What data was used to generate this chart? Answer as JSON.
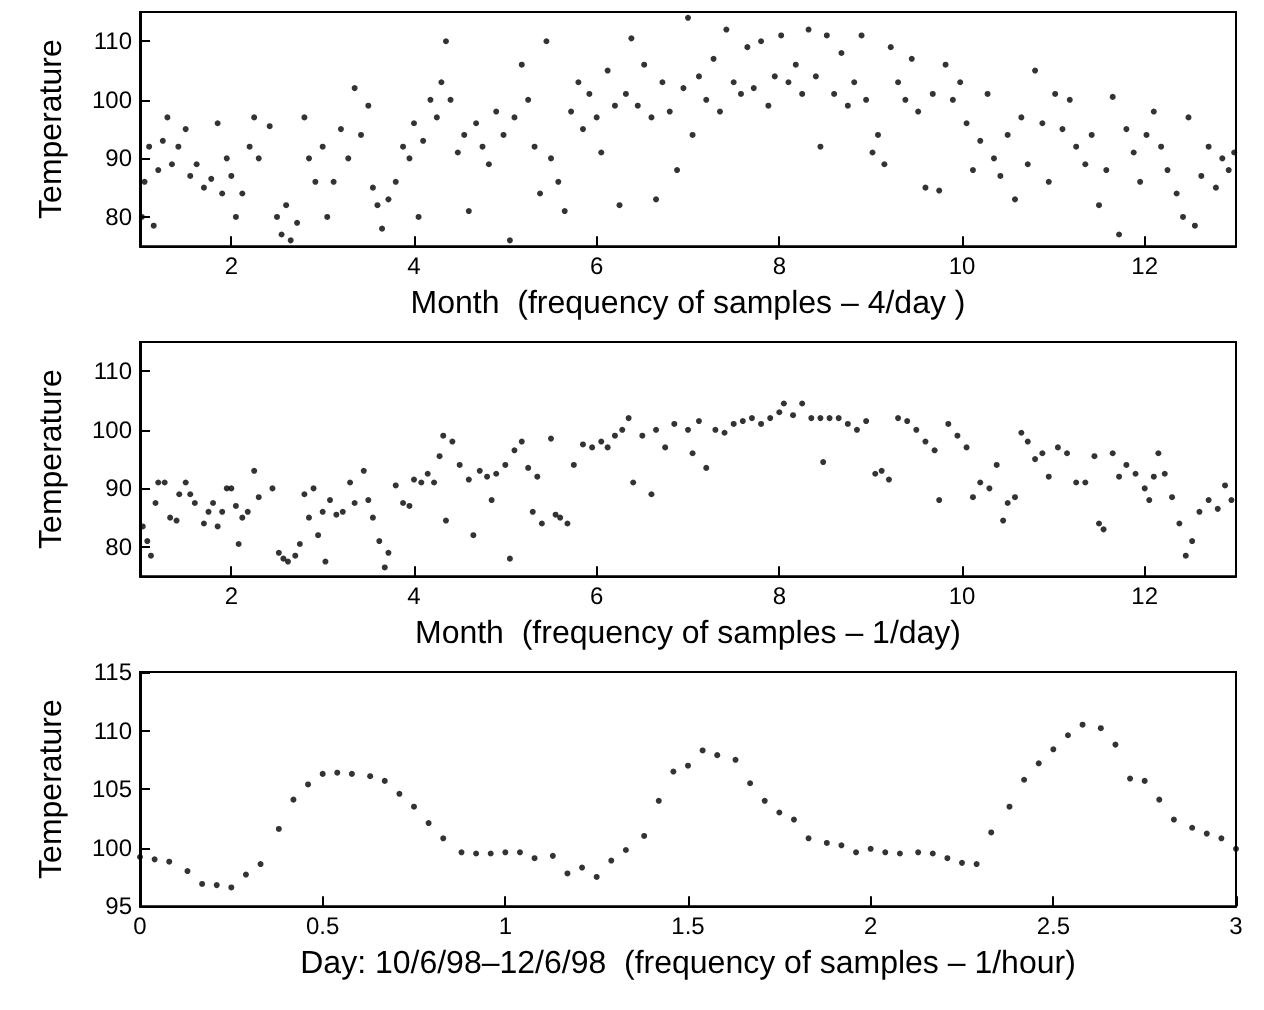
{
  "chart_data": [
    {
      "type": "scatter",
      "xlabel": "Month  (frequency of samples – 4/day )",
      "ylabel": "Temperature",
      "color": "#000000",
      "marker": "circle",
      "xlim": [
        1,
        13
      ],
      "ylim": [
        75,
        115
      ],
      "xticks": [
        2,
        4,
        6,
        8,
        10,
        12
      ],
      "yticks": [
        80,
        90,
        100,
        110
      ],
      "x": [
        1.02,
        1.05,
        1.1,
        1.15,
        1.2,
        1.25,
        1.3,
        1.35,
        1.42,
        1.5,
        1.55,
        1.62,
        1.7,
        1.78,
        1.85,
        1.9,
        1.95,
        2.0,
        2.05,
        2.12,
        2.2,
        2.25,
        2.3,
        2.42,
        2.5,
        2.55,
        2.6,
        2.65,
        2.72,
        2.8,
        2.85,
        2.92,
        3.0,
        3.05,
        3.12,
        3.2,
        3.28,
        3.35,
        3.42,
        3.5,
        3.55,
        3.6,
        3.65,
        3.72,
        3.8,
        3.88,
        3.95,
        4.0,
        4.05,
        4.1,
        4.18,
        4.25,
        4.3,
        4.35,
        4.4,
        4.48,
        4.55,
        4.6,
        4.68,
        4.75,
        4.82,
        4.9,
        4.98,
        5.05,
        5.1,
        5.18,
        5.25,
        5.32,
        5.38,
        5.45,
        5.5,
        5.58,
        5.65,
        5.72,
        5.8,
        5.85,
        5.92,
        6.0,
        6.05,
        6.12,
        6.2,
        6.25,
        6.32,
        6.38,
        6.45,
        6.52,
        6.6,
        6.65,
        6.72,
        6.8,
        6.88,
        6.95,
        7.0,
        7.05,
        7.12,
        7.2,
        7.28,
        7.35,
        7.42,
        7.5,
        7.58,
        7.65,
        7.72,
        7.8,
        7.88,
        7.95,
        8.02,
        8.1,
        8.18,
        8.25,
        8.32,
        8.4,
        8.45,
        8.52,
        8.6,
        8.68,
        8.75,
        8.82,
        8.9,
        8.95,
        9.02,
        9.08,
        9.15,
        9.22,
        9.3,
        9.38,
        9.45,
        9.52,
        9.6,
        9.68,
        9.75,
        9.82,
        9.9,
        9.98,
        10.05,
        10.12,
        10.2,
        10.28,
        10.35,
        10.42,
        10.5,
        10.58,
        10.65,
        10.72,
        10.8,
        10.88,
        10.95,
        11.02,
        11.1,
        11.18,
        11.25,
        11.35,
        11.42,
        11.5,
        11.58,
        11.65,
        11.72,
        11.8,
        11.88,
        11.95,
        12.02,
        12.1,
        12.18,
        12.25,
        12.35,
        12.42,
        12.48,
        12.55,
        12.62,
        12.7,
        12.78,
        12.85,
        12.92,
        12.98
      ],
      "values": [
        80,
        86,
        92,
        78.5,
        88,
        93,
        97,
        89,
        92,
        95,
        87,
        89,
        85,
        86.5,
        96,
        84,
        90,
        87,
        80,
        84,
        92,
        97,
        90,
        95.5,
        80,
        77,
        82,
        76,
        79,
        97,
        90,
        86,
        92,
        80,
        86,
        95,
        90,
        102,
        94,
        99,
        85,
        82,
        78,
        83,
        86,
        92,
        90,
        96,
        80,
        93,
        100,
        97,
        103,
        110,
        100,
        91,
        94,
        81,
        96,
        92,
        89,
        98,
        94,
        76,
        97,
        106,
        100,
        92,
        84,
        110,
        90,
        86,
        81,
        98,
        103,
        95,
        101,
        97,
        91,
        105,
        99,
        82,
        101,
        110.5,
        99,
        106,
        97,
        83,
        103,
        98,
        88,
        102,
        114,
        94,
        104,
        100,
        107,
        98,
        112,
        103,
        101,
        109,
        102,
        110,
        99,
        104,
        111,
        103,
        106,
        101,
        112,
        104,
        92,
        111,
        101,
        108,
        99,
        103,
        111,
        100,
        91,
        94,
        89,
        109,
        103,
        100,
        107,
        98,
        85,
        101,
        84.5,
        106,
        100,
        103,
        96,
        88,
        93,
        101,
        90,
        87,
        94,
        83,
        97,
        89,
        105,
        96,
        86,
        101,
        95,
        100,
        92,
        89,
        94,
        82,
        88,
        100.5,
        77,
        95,
        91,
        86,
        94,
        98,
        92,
        88,
        84,
        80,
        97,
        78.5,
        87,
        92,
        85,
        90,
        88,
        91
      ]
    },
    {
      "type": "scatter",
      "xlabel": "Month  (frequency of samples – 1/day)",
      "ylabel": "Temperature",
      "color": "#000000",
      "marker": "circle",
      "xlim": [
        1,
        13
      ],
      "ylim": [
        75,
        115
      ],
      "xticks": [
        2,
        4,
        6,
        8,
        10,
        12
      ],
      "yticks": [
        80,
        90,
        100,
        110
      ],
      "x": [
        1.03,
        1.08,
        1.12,
        1.17,
        1.2,
        1.27,
        1.33,
        1.4,
        1.43,
        1.5,
        1.55,
        1.6,
        1.7,
        1.75,
        1.8,
        1.85,
        1.9,
        1.95,
        2.0,
        2.05,
        2.08,
        2.12,
        2.18,
        2.25,
        2.3,
        2.45,
        2.52,
        2.57,
        2.62,
        2.7,
        2.75,
        2.8,
        2.85,
        2.9,
        2.95,
        3.0,
        3.03,
        3.08,
        3.15,
        3.22,
        3.3,
        3.35,
        3.45,
        3.5,
        3.55,
        3.62,
        3.68,
        3.72,
        3.8,
        3.88,
        3.95,
        4.0,
        4.08,
        4.15,
        4.22,
        4.28,
        4.32,
        4.35,
        4.42,
        4.5,
        4.6,
        4.65,
        4.72,
        4.8,
        4.85,
        4.9,
        5.0,
        5.05,
        5.1,
        5.18,
        5.25,
        5.3,
        5.35,
        5.4,
        5.5,
        5.55,
        5.6,
        5.68,
        5.75,
        5.85,
        5.95,
        6.05,
        6.12,
        6.2,
        6.28,
        6.35,
        6.4,
        6.5,
        6.6,
        6.65,
        6.75,
        6.85,
        7.0,
        7.05,
        7.12,
        7.2,
        7.3,
        7.4,
        7.5,
        7.6,
        7.7,
        7.8,
        7.9,
        8.0,
        8.05,
        8.15,
        8.25,
        8.35,
        8.45,
        8.48,
        8.55,
        8.65,
        8.75,
        8.85,
        8.95,
        9.05,
        9.12,
        9.2,
        9.3,
        9.4,
        9.5,
        9.6,
        9.7,
        9.75,
        9.85,
        9.95,
        10.05,
        10.12,
        10.2,
        10.3,
        10.38,
        10.45,
        10.5,
        10.58,
        10.65,
        10.72,
        10.8,
        10.88,
        10.95,
        11.05,
        11.15,
        11.25,
        11.35,
        11.45,
        11.5,
        11.55,
        11.65,
        11.72,
        11.8,
        11.9,
        12.0,
        12.05,
        12.1,
        12.15,
        12.22,
        12.3,
        12.38,
        12.45,
        12.52,
        12.6,
        12.7,
        12.8,
        12.88,
        12.95
      ],
      "values": [
        83.5,
        81,
        78.5,
        87.5,
        91,
        91,
        85,
        84.5,
        89,
        91,
        89,
        87.5,
        84,
        86,
        87.5,
        83.5,
        86,
        90,
        90,
        87,
        80.5,
        85,
        86,
        93,
        88.5,
        90,
        79,
        78,
        77.5,
        78.5,
        80.5,
        89,
        85,
        90,
        82,
        86,
        77.5,
        88,
        85.5,
        86,
        91,
        87.5,
        93,
        88,
        85,
        81,
        76.5,
        79,
        90.5,
        87.5,
        87,
        91.5,
        91,
        92.5,
        91,
        95.5,
        99,
        84.5,
        98,
        94,
        91.5,
        82,
        93,
        92,
        88,
        92.5,
        94,
        78,
        96.5,
        98,
        93.5,
        86,
        92,
        84,
        98.5,
        85.5,
        85,
        84,
        94,
        97.5,
        97,
        98,
        97,
        99,
        100,
        102,
        91,
        99,
        89,
        100,
        97,
        101,
        100,
        96,
        101.5,
        93.5,
        100,
        99.5,
        101,
        101.5,
        102,
        101,
        102,
        103,
        104.5,
        102.5,
        104.5,
        102,
        102,
        94.5,
        102,
        102,
        101,
        100,
        101.5,
        92.5,
        93,
        91.5,
        102,
        101.5,
        100,
        98,
        96.5,
        88,
        101,
        99,
        97,
        88.5,
        91,
        90,
        94,
        84.5,
        87.5,
        88.5,
        99.5,
        98,
        95,
        96,
        92,
        97,
        96,
        91,
        91,
        95.5,
        84,
        83,
        96,
        92,
        94,
        92.5,
        90,
        88,
        92,
        96,
        92.5,
        88.5,
        84,
        78.5,
        81,
        86,
        88,
        86.5,
        90.5,
        88
      ]
    },
    {
      "type": "scatter",
      "xlabel": "Day: 10/6/98–12/6/98  (frequency of samples – 1/hour)",
      "ylabel": "Temperature",
      "color": "#000000",
      "marker": "circle",
      "xlim": [
        0,
        3
      ],
      "ylim": [
        95,
        115
      ],
      "xticks": [
        0,
        0.5,
        1,
        1.5,
        2,
        2.5,
        3
      ],
      "yticks": [
        95,
        100,
        105,
        110,
        115
      ],
      "x": [
        0,
        0.04,
        0.08,
        0.13,
        0.17,
        0.21,
        0.25,
        0.29,
        0.33,
        0.38,
        0.42,
        0.46,
        0.5,
        0.54,
        0.58,
        0.63,
        0.67,
        0.71,
        0.75,
        0.79,
        0.83,
        0.88,
        0.92,
        0.96,
        1,
        1.04,
        1.08,
        1.13,
        1.17,
        1.21,
        1.25,
        1.29,
        1.33,
        1.38,
        1.42,
        1.46,
        1.5,
        1.54,
        1.58,
        1.63,
        1.67,
        1.71,
        1.75,
        1.79,
        1.83,
        1.88,
        1.92,
        1.96,
        2,
        2.04,
        2.08,
        2.13,
        2.17,
        2.21,
        2.25,
        2.29,
        2.33,
        2.38,
        2.42,
        2.46,
        2.5,
        2.54,
        2.58,
        2.63,
        2.67,
        2.71,
        2.75,
        2.79,
        2.83,
        2.88,
        2.92,
        2.96,
        3
      ],
      "values": [
        99.2,
        99,
        98.8,
        98,
        96.9,
        96.8,
        96.6,
        97.7,
        98.6,
        101.6,
        104.1,
        105.4,
        106.3,
        106.4,
        106.3,
        106.1,
        105.7,
        104.6,
        103.5,
        102.1,
        100.8,
        99.6,
        99.5,
        99.5,
        99.6,
        99.6,
        99.1,
        99.3,
        97.8,
        98.3,
        97.5,
        98.9,
        99.8,
        101,
        104,
        106.5,
        107,
        108.3,
        107.9,
        107.5,
        105.5,
        104,
        103,
        102.4,
        100.8,
        100.4,
        100.2,
        99.6,
        99.9,
        99.6,
        99.5,
        99.6,
        99.5,
        99.1,
        98.7,
        98.6,
        101.3,
        103.5,
        105.8,
        107.2,
        108.4,
        109.6,
        110.5,
        110.2,
        108.8,
        105.9,
        105.7,
        104.1,
        102.4,
        101.7,
        101.2,
        100.8,
        99.9
      ]
    }
  ]
}
